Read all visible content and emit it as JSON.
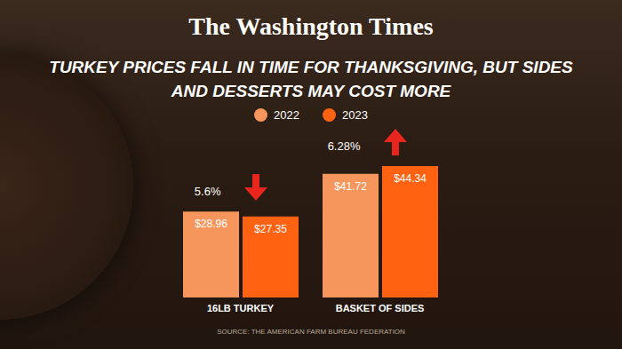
{
  "chart_data": {
    "type": "bar",
    "header": "The Washington Times",
    "title": "TURKEY PRICES FALL IN TIME FOR THANKSGIVING, BUT SIDES AND DESSERTS MAY COST MORE",
    "source": "SOURCE: THE AMERICAN FARM BUREAU FEDERATION",
    "categories": [
      "16LB TURKEY",
      "BASKET OF SIDES"
    ],
    "series": [
      {
        "name": "2022",
        "color": "#f7965c",
        "values": [
          28.96,
          41.72
        ],
        "value_labels": [
          "$28.96",
          "$41.72"
        ]
      },
      {
        "name": "2023",
        "color": "#ff6210",
        "values": [
          27.35,
          44.34
        ],
        "value_labels": [
          "$27.35",
          "$44.34"
        ]
      }
    ],
    "annotations": [
      {
        "text": "5.6%",
        "category": "16LB TURKEY",
        "direction": "down"
      },
      {
        "text": "6.28%",
        "category": "BASKET OF SIDES",
        "direction": "up"
      }
    ],
    "ylim": [
      0,
      50
    ],
    "data_labels": true,
    "tick_labels": "x",
    "legend": "top"
  }
}
